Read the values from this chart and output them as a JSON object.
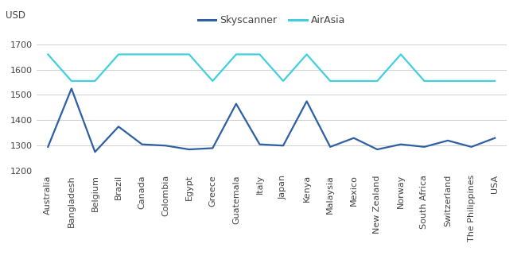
{
  "categories": [
    "Australia",
    "Bangladesh",
    "Belgium",
    "Brazil",
    "Canada",
    "Colombia",
    "Egypt",
    "Greece",
    "Guatemala",
    "Italy",
    "Japan",
    "Kenya",
    "Malaysia",
    "Mexico",
    "New Zealand",
    "Norway",
    "South Africa",
    "Switzerland",
    "The Philippines",
    "USA"
  ],
  "skyscanner": [
    1295,
    1525,
    1275,
    1375,
    1305,
    1300,
    1285,
    1290,
    1465,
    1305,
    1300,
    1475,
    1295,
    1330,
    1285,
    1305,
    1295,
    1320,
    1295,
    1330
  ],
  "airasia": [
    1660,
    1555,
    1555,
    1660,
    1660,
    1660,
    1660,
    1555,
    1660,
    1660,
    1555,
    1660,
    1555,
    1555,
    1555,
    1660,
    1555,
    1555,
    1555,
    1555
  ],
  "skyscanner_color": "#2e5fa3",
  "airasia_color": "#41cfe0",
  "skyscanner_label": "Skyscanner",
  "airasia_label": "AirAsia",
  "ylabel": "USD",
  "ylim": [
    1200,
    1750
  ],
  "yticks": [
    1200,
    1300,
    1400,
    1500,
    1600,
    1700
  ],
  "grid_color": "#d0d0d0",
  "bg_color": "#ffffff",
  "line_width": 1.6,
  "tick_fontsize": 8,
  "label_fontsize": 8.5,
  "legend_fontsize": 9
}
